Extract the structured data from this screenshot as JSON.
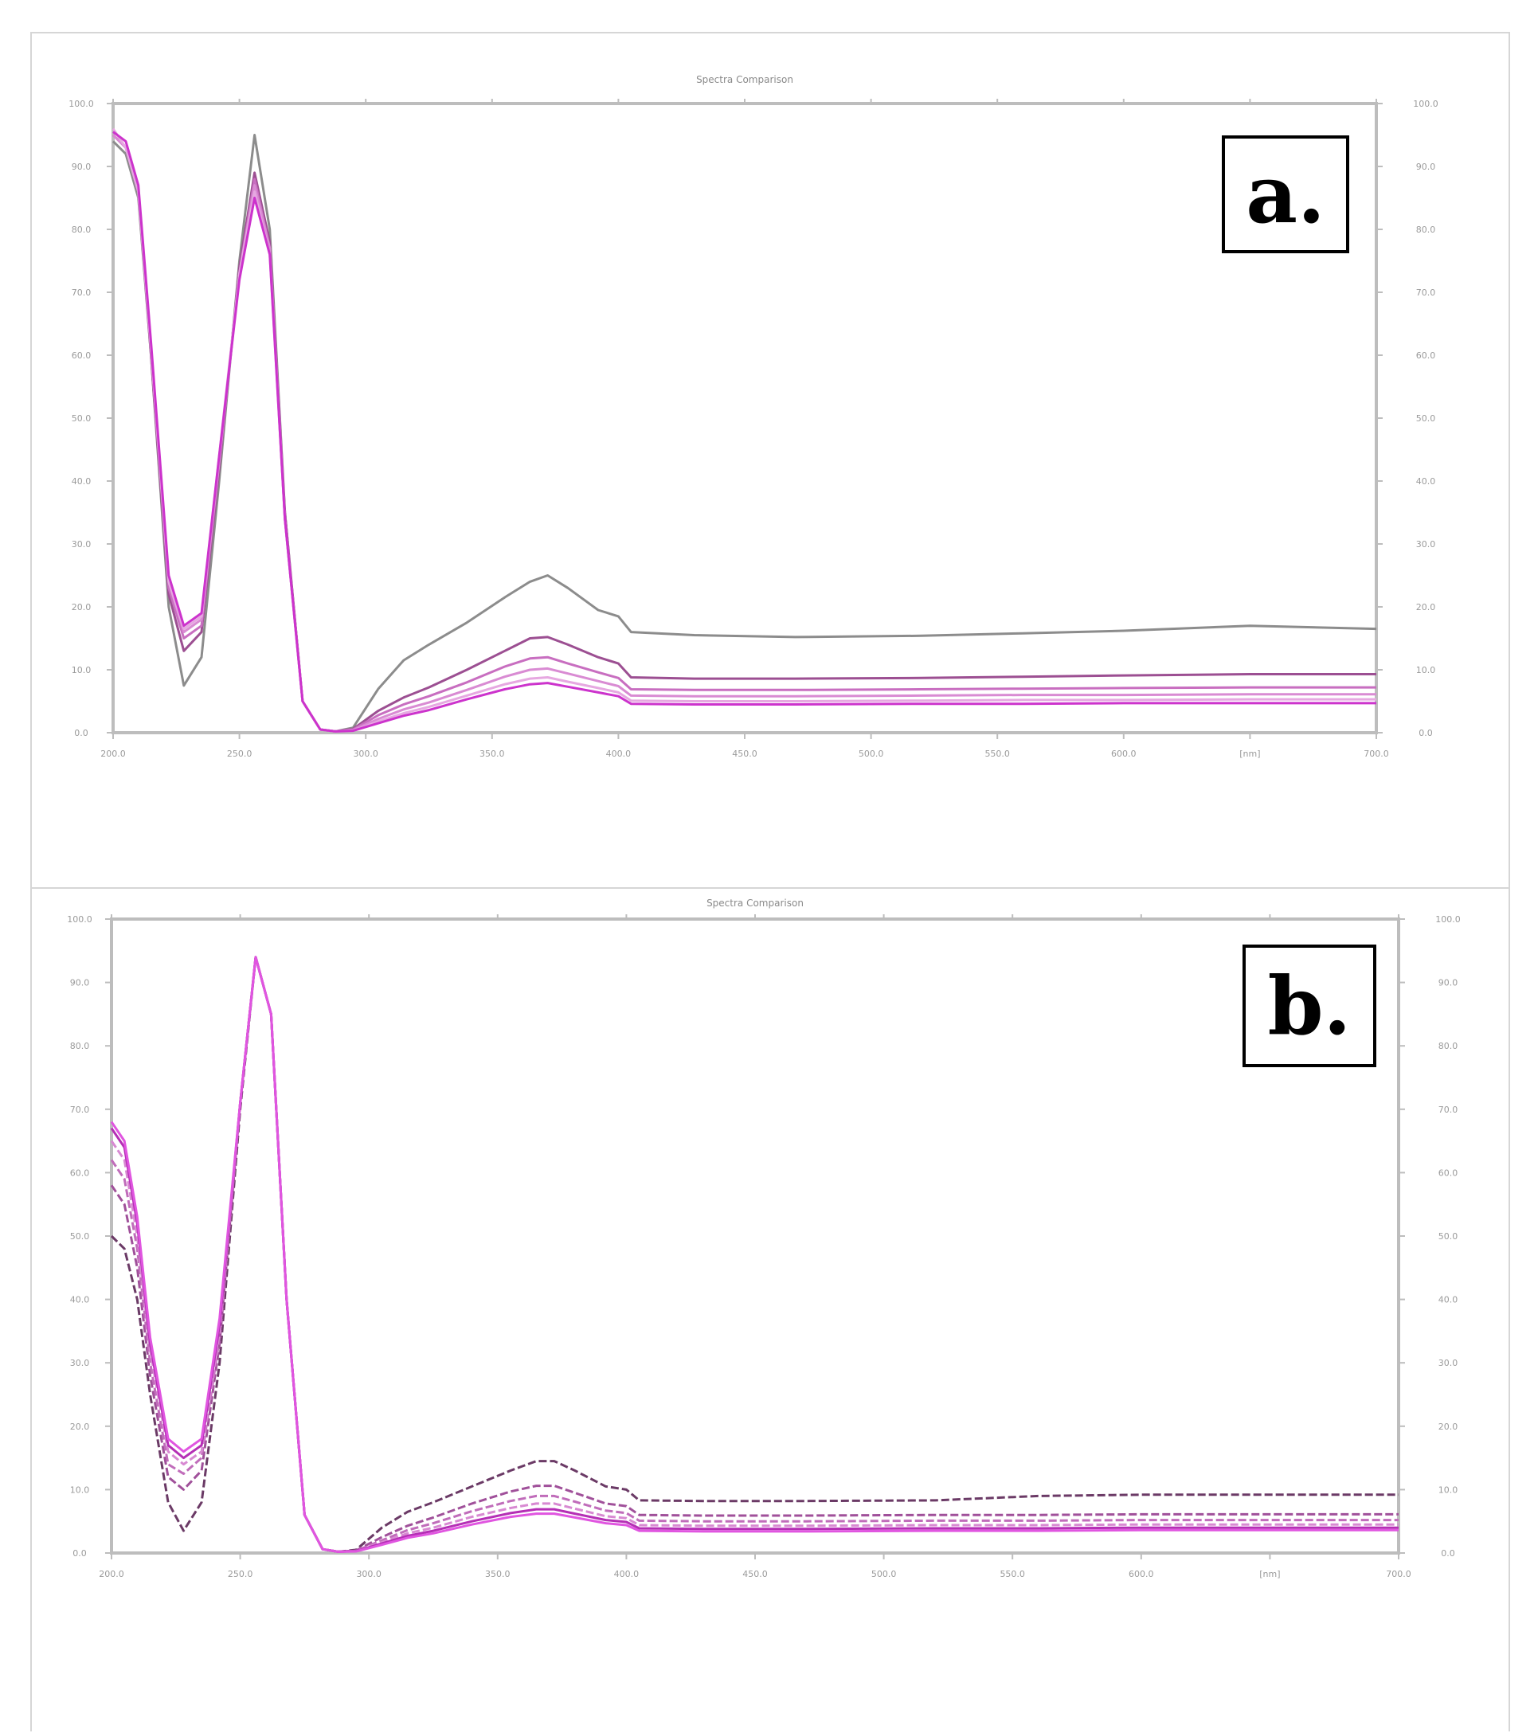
{
  "chart_data": [
    {
      "type": "line",
      "panel_label": "a.",
      "title": "Spectra Comparison",
      "x_unit_label": "[nm]",
      "xlim": [
        200,
        700
      ],
      "ylim": [
        0,
        100
      ],
      "x_ticks": [
        "200.0",
        "250.0",
        "300.0",
        "350.0",
        "400.0",
        "450.0",
        "500.0",
        "550.0",
        "600.0",
        "[nm]",
        "700.0"
      ],
      "y_ticks": [
        "0.0",
        "10.0",
        "20.0",
        "30.0",
        "40.0",
        "50.0",
        "60.0",
        "70.0",
        "80.0",
        "90.0",
        "100.0"
      ],
      "grid": false,
      "series": [
        {
          "color": "#8c8c8c",
          "x": [
            200,
            205,
            210,
            215,
            222,
            228,
            235,
            242,
            250,
            256,
            262,
            268,
            275,
            282,
            288,
            295,
            305,
            315,
            325,
            340,
            355,
            365,
            372,
            380,
            392,
            400,
            405,
            430,
            470,
            520,
            560,
            600,
            650,
            700
          ],
          "y": [
            94,
            92,
            85,
            60,
            20,
            7.5,
            12,
            40,
            75,
            95,
            80,
            35,
            5,
            0.5,
            0.2,
            0.8,
            7,
            11.5,
            14,
            17.5,
            21.5,
            24,
            25,
            23,
            19.5,
            18.5,
            16,
            15.5,
            15.2,
            15.4,
            15.8,
            16.2,
            17,
            16.5
          ]
        },
        {
          "color": "#9c4f92",
          "x": [
            200,
            205,
            210,
            215,
            222,
            228,
            235,
            242,
            250,
            256,
            262,
            268,
            275,
            282,
            288,
            295,
            305,
            315,
            325,
            340,
            355,
            365,
            372,
            380,
            392,
            400,
            405,
            430,
            470,
            520,
            560,
            600,
            650,
            700
          ],
          "y": [
            95,
            93,
            86,
            60,
            22,
            13,
            16,
            42,
            74,
            89,
            78,
            35,
            5,
            0.5,
            0.2,
            0.6,
            3.5,
            5.6,
            7.2,
            10,
            13,
            15,
            15.2,
            14,
            12,
            11,
            8.8,
            8.6,
            8.6,
            8.7,
            8.9,
            9.1,
            9.3,
            9.3
          ]
        },
        {
          "color": "#c86ec0",
          "x": [
            200,
            205,
            210,
            215,
            222,
            228,
            235,
            242,
            250,
            256,
            262,
            268,
            275,
            282,
            288,
            295,
            305,
            315,
            325,
            340,
            355,
            365,
            372,
            380,
            392,
            400,
            405,
            430,
            470,
            520,
            560,
            600,
            650,
            700
          ],
          "y": [
            95,
            93,
            86,
            61,
            23,
            15,
            17,
            43,
            73,
            88,
            77,
            34,
            5,
            0.5,
            0.2,
            0.5,
            2.8,
            4.5,
            5.8,
            8,
            10.5,
            11.8,
            12,
            11,
            9.6,
            8.7,
            6.9,
            6.8,
            6.8,
            6.9,
            7.0,
            7.1,
            7.2,
            7.2
          ]
        },
        {
          "color": "#d98bd3",
          "x": [
            200,
            205,
            210,
            215,
            222,
            228,
            235,
            242,
            250,
            256,
            262,
            268,
            275,
            282,
            288,
            295,
            305,
            315,
            325,
            340,
            355,
            365,
            372,
            380,
            392,
            400,
            405,
            430,
            470,
            520,
            560,
            600,
            650,
            700
          ],
          "y": [
            95,
            93,
            86,
            61,
            24,
            16,
            18,
            43,
            73,
            87,
            77,
            34,
            5,
            0.5,
            0.2,
            0.4,
            2.2,
            3.7,
            4.8,
            6.8,
            8.9,
            10,
            10.2,
            9.4,
            8.2,
            7.4,
            5.9,
            5.8,
            5.8,
            5.9,
            6.0,
            6.0,
            6.1,
            6.1
          ]
        },
        {
          "color": "#e6a8e1",
          "x": [
            200,
            205,
            210,
            215,
            222,
            228,
            235,
            242,
            250,
            256,
            262,
            268,
            275,
            282,
            288,
            295,
            305,
            315,
            325,
            340,
            355,
            365,
            372,
            380,
            392,
            400,
            405,
            430,
            470,
            520,
            560,
            600,
            650,
            700
          ],
          "y": [
            96,
            93,
            86,
            61,
            24,
            16.5,
            18.5,
            44,
            73,
            86,
            76,
            34,
            5,
            0.5,
            0.2,
            0.3,
            1.8,
            3.1,
            4.1,
            5.9,
            7.7,
            8.6,
            8.8,
            8.1,
            7.1,
            6.4,
            5.1,
            5.0,
            5.0,
            5.1,
            5.2,
            5.2,
            5.3,
            5.3
          ]
        },
        {
          "color": "#cc33cc",
          "x": [
            200,
            205,
            210,
            215,
            222,
            228,
            235,
            242,
            250,
            256,
            262,
            268,
            275,
            282,
            288,
            295,
            305,
            315,
            325,
            340,
            355,
            365,
            372,
            380,
            392,
            400,
            405,
            430,
            470,
            520,
            560,
            600,
            650,
            700
          ],
          "y": [
            95.5,
            94,
            87,
            62,
            25,
            17,
            19,
            44,
            72,
            85,
            76,
            34,
            5,
            0.5,
            0.2,
            0.3,
            1.5,
            2.7,
            3.6,
            5.3,
            6.9,
            7.7,
            7.9,
            7.3,
            6.4,
            5.8,
            4.6,
            4.5,
            4.5,
            4.6,
            4.6,
            4.7,
            4.7,
            4.7
          ]
        }
      ]
    },
    {
      "type": "line",
      "panel_label": "b.",
      "title": "Spectra Comparison",
      "x_unit_label": "[nm]",
      "xlim": [
        200,
        700
      ],
      "ylim": [
        0,
        100
      ],
      "x_ticks": [
        "200.0",
        "250.0",
        "300.0",
        "350.0",
        "400.0",
        "450.0",
        "500.0",
        "550.0",
        "600.0",
        "[nm]",
        "700.0"
      ],
      "y_ticks": [
        "0.0",
        "10.0",
        "20.0",
        "30.0",
        "40.0",
        "50.0",
        "60.0",
        "70.0",
        "80.0",
        "90.0",
        "100.0"
      ],
      "grid": false,
      "series": [
        {
          "color": "#6b3a66",
          "dashed": true,
          "x": [
            200,
            205,
            210,
            215,
            222,
            228,
            235,
            242,
            250,
            256,
            262,
            268,
            275,
            282,
            288,
            295,
            305,
            315,
            325,
            340,
            355,
            365,
            372,
            380,
            392,
            400,
            405,
            430,
            470,
            520,
            560,
            600,
            650,
            700
          ],
          "y": [
            50,
            48,
            40,
            25,
            8,
            3.5,
            8,
            30,
            70,
            94,
            85,
            40,
            6,
            0.6,
            0.2,
            0.5,
            4,
            6.5,
            8,
            10.5,
            13,
            14.5,
            14.5,
            13,
            10.5,
            10,
            8.3,
            8.2,
            8.2,
            8.3,
            9,
            9.2,
            9.2,
            9.2
          ]
        },
        {
          "color": "#a0509a",
          "dashed": true,
          "x": [
            200,
            205,
            210,
            215,
            222,
            228,
            235,
            242,
            250,
            256,
            262,
            268,
            275,
            282,
            288,
            295,
            305,
            315,
            325,
            340,
            355,
            365,
            372,
            380,
            392,
            400,
            405,
            430,
            470,
            520,
            560,
            600,
            650,
            700
          ],
          "y": [
            58,
            55,
            45,
            28,
            12,
            10,
            13,
            33,
            71,
            94,
            85,
            40,
            6,
            0.6,
            0.2,
            0.4,
            2.5,
            4.3,
            5.6,
            7.8,
            9.7,
            10.6,
            10.6,
            9.5,
            7.8,
            7.4,
            6,
            5.9,
            5.9,
            6,
            6,
            6.1,
            6.1,
            6.1
          ]
        },
        {
          "color": "#c06cba",
          "dashed": true,
          "x": [
            200,
            205,
            210,
            215,
            222,
            228,
            235,
            242,
            250,
            256,
            262,
            268,
            275,
            282,
            288,
            295,
            305,
            315,
            325,
            340,
            355,
            365,
            372,
            380,
            392,
            400,
            405,
            430,
            470,
            520,
            560,
            600,
            650,
            700
          ],
          "y": [
            62,
            59,
            48,
            30,
            14,
            12.5,
            15,
            34,
            71,
            94,
            85,
            40,
            6,
            0.6,
            0.2,
            0.35,
            2,
            3.6,
            4.7,
            6.6,
            8.2,
            9,
            9.0,
            8.1,
            6.7,
            6.3,
            5.1,
            5.0,
            5.0,
            5.1,
            5.1,
            5.2,
            5.2,
            5.2
          ]
        },
        {
          "color": "#d889d2",
          "dashed": true,
          "x": [
            200,
            205,
            210,
            215,
            222,
            228,
            235,
            242,
            250,
            256,
            262,
            268,
            275,
            282,
            288,
            295,
            305,
            315,
            325,
            340,
            355,
            365,
            372,
            380,
            392,
            400,
            405,
            430,
            470,
            520,
            560,
            600,
            650,
            700
          ],
          "y": [
            65,
            62,
            50,
            32,
            16,
            14,
            16,
            35,
            71,
            94,
            85,
            40,
            6,
            0.6,
            0.2,
            0.3,
            1.7,
            3.1,
            4.0,
            5.7,
            7.1,
            7.8,
            7.8,
            7.0,
            5.8,
            5.5,
            4.4,
            4.3,
            4.3,
            4.4,
            4.4,
            4.5,
            4.5,
            4.5
          ]
        },
        {
          "color": "#b52fb5",
          "x": [
            200,
            205,
            210,
            215,
            222,
            228,
            235,
            242,
            250,
            256,
            262,
            268,
            275,
            282,
            288,
            295,
            305,
            315,
            325,
            340,
            355,
            365,
            372,
            380,
            392,
            400,
            405,
            430,
            470,
            520,
            560,
            600,
            650,
            700
          ],
          "y": [
            67,
            64,
            52,
            33,
            17,
            15,
            17,
            36,
            71,
            94,
            85,
            40,
            6,
            0.6,
            0.2,
            0.3,
            1.5,
            2.7,
            3.5,
            5.0,
            6.3,
            6.9,
            6.9,
            6.2,
            5.2,
            4.9,
            3.9,
            3.8,
            3.8,
            3.9,
            3.9,
            4.0,
            4.0,
            4.0
          ]
        },
        {
          "color": "#e055e0",
          "x": [
            200,
            205,
            210,
            215,
            222,
            228,
            235,
            242,
            250,
            256,
            262,
            268,
            275,
            282,
            288,
            295,
            305,
            315,
            325,
            340,
            355,
            365,
            372,
            380,
            392,
            400,
            405,
            430,
            470,
            520,
            560,
            600,
            650,
            700
          ],
          "y": [
            68,
            65,
            53,
            34,
            18,
            16,
            18,
            37,
            71,
            94,
            85,
            40,
            6,
            0.6,
            0.2,
            0.25,
            1.3,
            2.4,
            3.1,
            4.5,
            5.7,
            6.2,
            6.2,
            5.6,
            4.7,
            4.4,
            3.5,
            3.4,
            3.4,
            3.5,
            3.5,
            3.6,
            3.6,
            3.6
          ]
        }
      ]
    }
  ]
}
